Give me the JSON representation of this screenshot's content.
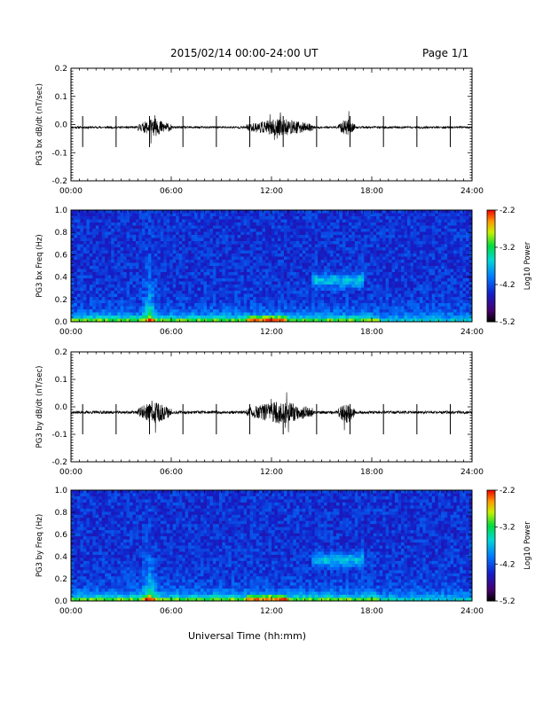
{
  "header": {
    "title": "2015/02/14  00:00-24:00 UT",
    "page": "Page 1/1"
  },
  "footer": {
    "xlabel": "Universal Time (hh:mm)"
  },
  "colorbar": {
    "label": "Log10 Power",
    "ticks": [
      "-2.2",
      "-3.2",
      "-4.2",
      "-5.2"
    ]
  },
  "chart_data": [
    {
      "type": "line",
      "ylabel": "PG3 bx dB/dt (nT/sec)",
      "xticks": [
        "00:00",
        "06:00",
        "12:00",
        "18:00",
        "24:00"
      ],
      "xlim": [
        0,
        24
      ],
      "ylim": [
        -0.2,
        0.2
      ],
      "yticks": [
        "0.2",
        "0.1",
        "0.0",
        "-0.1",
        "-0.2"
      ],
      "baseline": -0.01,
      "spike_hours": [
        0.7,
        2.7,
        4.7,
        6.7,
        8.7,
        10.7,
        12.7,
        14.7,
        16.7,
        18.7,
        20.7,
        22.7
      ],
      "spike_amplitude": [
        -0.07,
        0.04
      ],
      "max_amplitude": 0.06,
      "active_intervals": [
        "04:00-06:00",
        "10:30-14:30",
        "16:00-17:00"
      ]
    },
    {
      "type": "heatmap",
      "ylabel": "PG3 bx Freq (Hz)",
      "xticks": [
        "00:00",
        "06:00",
        "12:00",
        "18:00",
        "24:00"
      ],
      "yticks": [
        "1.0",
        "0.8",
        "0.6",
        "0.4",
        "0.2",
        "0.0"
      ],
      "xlim": [
        0,
        24
      ],
      "ylim": [
        0,
        1.0
      ],
      "zlim": [
        -5.2,
        -2.2
      ],
      "features": [
        "broadband enhancement near 04:30-05:00",
        "low-frequency power 00:00-18:00",
        "band 0.3-0.45 Hz at 14:30-17:30"
      ]
    },
    {
      "type": "line",
      "ylabel": "PG3 by dB/dt (nT/sec)",
      "xticks": [
        "00:00",
        "06:00",
        "12:00",
        "18:00",
        "24:00"
      ],
      "xlim": [
        0,
        24
      ],
      "ylim": [
        -0.2,
        0.2
      ],
      "yticks": [
        "0.2",
        "0.1",
        "0.0",
        "-0.1",
        "-0.2"
      ],
      "baseline": -0.02,
      "spike_hours": [
        0.7,
        2.7,
        4.7,
        6.7,
        8.7,
        10.7,
        12.7,
        14.7,
        16.7,
        18.7,
        20.7,
        22.7
      ],
      "spike_amplitude": [
        -0.08,
        0.03
      ],
      "max_amplitude": 0.08,
      "active_intervals": [
        "04:00-06:00",
        "10:30-14:30",
        "16:00-17:00"
      ]
    },
    {
      "type": "heatmap",
      "ylabel": "PG3 by Freq (Hz)",
      "xticks": [
        "00:00",
        "06:00",
        "12:00",
        "18:00",
        "24:00"
      ],
      "yticks": [
        "1.0",
        "0.8",
        "0.6",
        "0.4",
        "0.2",
        "0.0"
      ],
      "xlim": [
        0,
        24
      ],
      "ylim": [
        0,
        1.0
      ],
      "zlim": [
        -5.2,
        -2.2
      ],
      "features": [
        "broadband enhancement near 04:30-05:00",
        "low-frequency power 00:00-18:00",
        "band 0.3-0.45 Hz at 14:30-17:30"
      ]
    }
  ]
}
